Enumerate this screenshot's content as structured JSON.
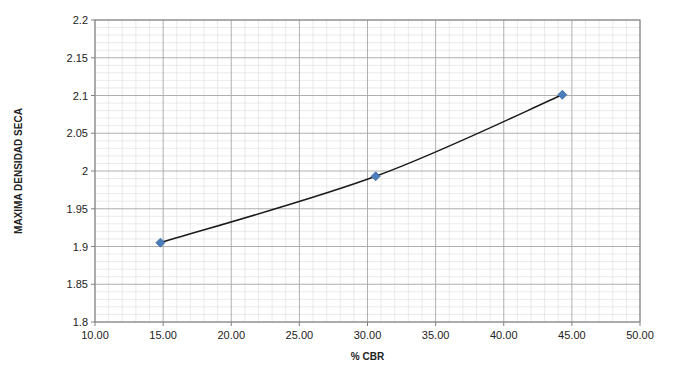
{
  "chart_data": {
    "type": "line",
    "x_label": "% CBR",
    "y_label": "MAXIMA DENSIDAD SECA",
    "x": [
      14.8,
      30.6,
      44.3
    ],
    "series": [
      {
        "name": "MAXIMA DENSIDAD SECA",
        "color": "#1a1a1a",
        "marker": "diamond",
        "line_style": "solid",
        "values": [
          1.905,
          1.993,
          2.101
        ]
      }
    ],
    "xlim": [
      10,
      50
    ],
    "xticks": [
      {
        "value": 10,
        "label": "10.00"
      },
      {
        "value": 15,
        "label": "15.00"
      },
      {
        "value": 20,
        "label": "20.00"
      },
      {
        "value": 25,
        "label": "25.00"
      },
      {
        "value": 30,
        "label": "30.00"
      },
      {
        "value": 35,
        "label": "35.00"
      },
      {
        "value": 40,
        "label": "40.00"
      },
      {
        "value": 45,
        "label": "45.00"
      },
      {
        "value": 50,
        "label": "50.00"
      }
    ],
    "ylim": [
      1.8,
      2.2
    ],
    "yticks": [
      1.8,
      1.85,
      1.9,
      1.95,
      2,
      2.05,
      2.1,
      2.15,
      2.2
    ],
    "grid": true
  }
}
